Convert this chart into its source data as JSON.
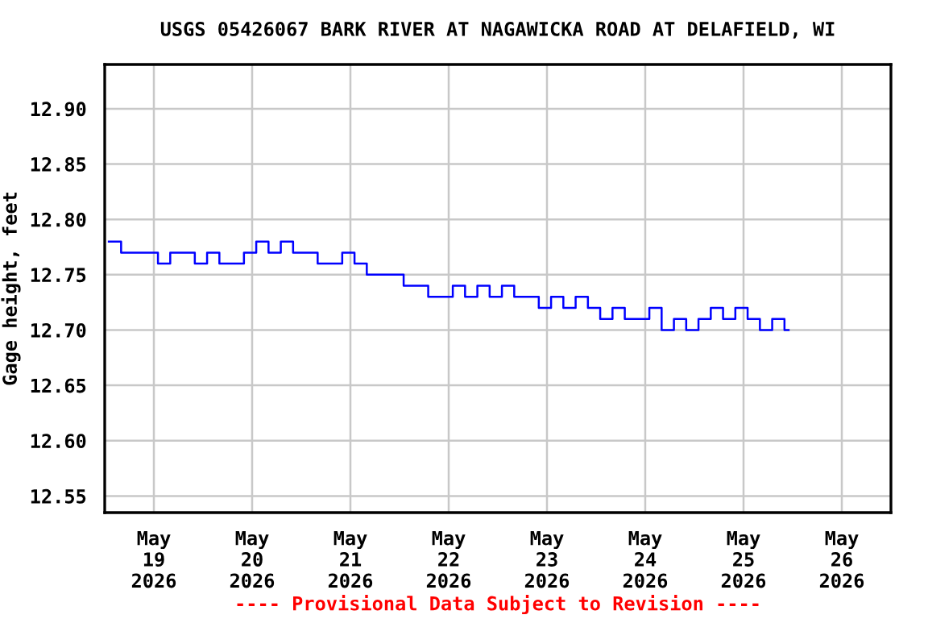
{
  "chart_data": {
    "type": "step",
    "title": "USGS 05426067 BARK RIVER AT NAGAWICKA ROAD AT DELAFIELD, WI",
    "ylabel": "Gage height, feet",
    "annotations": [
      "---- Provisional Data Subject to Revision ----"
    ],
    "x": [
      "2026-05-18T13:00",
      "2026-05-18T16:00",
      "2026-05-18T19:00",
      "2026-05-18T22:00",
      "2026-05-19T01:00",
      "2026-05-19T04:00",
      "2026-05-19T07:00",
      "2026-05-19T10:00",
      "2026-05-19T13:00",
      "2026-05-19T16:00",
      "2026-05-19T19:00",
      "2026-05-19T22:00",
      "2026-05-20T01:00",
      "2026-05-20T04:00",
      "2026-05-20T07:00",
      "2026-05-20T10:00",
      "2026-05-20T13:00",
      "2026-05-20T16:00",
      "2026-05-20T19:00",
      "2026-05-20T22:00",
      "2026-05-21T01:00",
      "2026-05-21T04:00",
      "2026-05-21T07:00",
      "2026-05-21T10:00",
      "2026-05-21T13:00",
      "2026-05-21T16:00",
      "2026-05-21T19:00",
      "2026-05-21T22:00",
      "2026-05-22T01:00",
      "2026-05-22T04:00",
      "2026-05-22T07:00",
      "2026-05-22T10:00",
      "2026-05-22T13:00",
      "2026-05-22T16:00",
      "2026-05-22T19:00",
      "2026-05-22T22:00",
      "2026-05-23T01:00",
      "2026-05-23T04:00",
      "2026-05-23T07:00",
      "2026-05-23T10:00",
      "2026-05-23T13:00",
      "2026-05-23T16:00",
      "2026-05-23T19:00",
      "2026-05-23T22:00",
      "2026-05-24T01:00",
      "2026-05-24T04:00",
      "2026-05-24T07:00",
      "2026-05-24T10:00",
      "2026-05-24T13:00",
      "2026-05-24T16:00",
      "2026-05-24T19:00",
      "2026-05-24T22:00",
      "2026-05-25T01:00",
      "2026-05-25T04:00",
      "2026-05-25T07:00",
      "2026-05-25T10:00",
      "2026-05-25T11:00"
    ],
    "series": [
      {
        "color": "#0000ff",
        "values": [
          12.78,
          12.77,
          12.77,
          12.77,
          12.76,
          12.77,
          12.77,
          12.76,
          12.77,
          12.76,
          12.76,
          12.77,
          12.78,
          12.77,
          12.78,
          12.77,
          12.77,
          12.76,
          12.76,
          12.77,
          12.76,
          12.75,
          12.75,
          12.75,
          12.74,
          12.74,
          12.73,
          12.73,
          12.74,
          12.73,
          12.74,
          12.73,
          12.74,
          12.73,
          12.73,
          12.72,
          12.73,
          12.72,
          12.73,
          12.72,
          12.71,
          12.72,
          12.71,
          12.71,
          12.72,
          12.7,
          12.71,
          12.7,
          12.71,
          12.72,
          12.71,
          12.72,
          12.71,
          12.7,
          12.71,
          12.7,
          12.7
        ]
      }
    ],
    "xlim": [
      "2026-05-18T12:00",
      "2026-05-26T12:00"
    ],
    "xticks": [
      {
        "value": "2026-05-19",
        "label": "May\n19\n2026"
      },
      {
        "value": "2026-05-20",
        "label": "May\n20\n2026"
      },
      {
        "value": "2026-05-21",
        "label": "May\n21\n2026"
      },
      {
        "value": "2026-05-22",
        "label": "May\n22\n2026"
      },
      {
        "value": "2026-05-23",
        "label": "May\n23\n2026"
      },
      {
        "value": "2026-05-24",
        "label": "May\n24\n2026"
      },
      {
        "value": "2026-05-25",
        "label": "May\n25\n2026"
      },
      {
        "value": "2026-05-26",
        "label": "May\n26\n2026"
      }
    ],
    "ylim": [
      12.535,
      12.94
    ],
    "yticks": [
      {
        "value": 12.55,
        "label": "12.55"
      },
      {
        "value": 12.6,
        "label": "12.60"
      },
      {
        "value": 12.65,
        "label": "12.65"
      },
      {
        "value": 12.7,
        "label": "12.70"
      },
      {
        "value": 12.75,
        "label": "12.75"
      },
      {
        "value": 12.8,
        "label": "12.80"
      },
      {
        "value": 12.85,
        "label": "12.85"
      },
      {
        "value": 12.9,
        "label": "12.90"
      }
    ],
    "grid": true
  }
}
